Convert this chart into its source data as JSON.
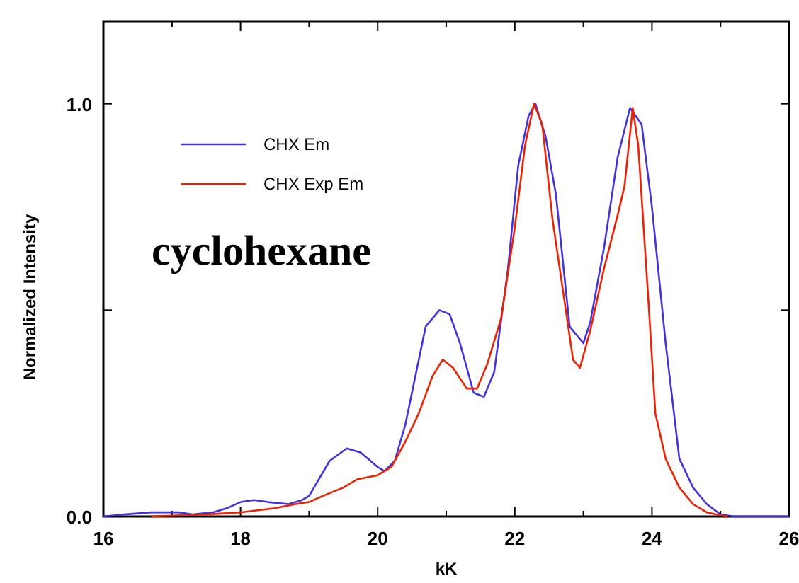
{
  "chart_data": {
    "type": "line",
    "xlabel": "kK",
    "ylabel": "Normalized Intensity",
    "annotations": [
      "cyclohexane"
    ],
    "xlim": [
      16,
      26
    ],
    "ylim": [
      0,
      1.2
    ],
    "xticks": [
      16,
      {
        "value": 17,
        "label": null
      },
      18,
      {
        "value": 19,
        "label": null
      },
      20,
      {
        "value": 21,
        "label": null
      },
      22,
      {
        "value": 23,
        "label": null
      },
      24,
      {
        "value": 25,
        "label": null
      },
      26
    ],
    "yticks": [
      {
        "value": 0,
        "label": "0.0"
      },
      {
        "value": 0.5,
        "label": null
      },
      {
        "value": 1,
        "label": "1.0"
      }
    ],
    "grid": false,
    "legend": "top left",
    "marker": "none",
    "line_style": "solid",
    "series": [
      {
        "name": "CHX Em",
        "color": "#4433dd",
        "x": [
          16,
          16.3,
          16.7,
          17.1,
          17.3,
          17.6,
          17.8,
          18,
          18.2,
          18.4,
          18.7,
          18.9,
          19,
          19.3,
          19.55,
          19.75,
          20,
          20.1,
          20.25,
          20.4,
          20.7,
          20.9,
          21.05,
          21.2,
          21.4,
          21.55,
          21.7,
          21.9,
          22.05,
          22.2,
          22.3,
          22.45,
          22.6,
          22.8,
          23,
          23.1,
          23.3,
          23.5,
          23.68,
          23.85,
          24,
          24.2,
          24.4,
          24.6,
          24.8,
          25,
          25.2,
          26
        ],
        "values": [
          0,
          0.005,
          0.01,
          0.01,
          0.005,
          0.01,
          0.02,
          0.035,
          0.04,
          0.035,
          0.03,
          0.04,
          0.05,
          0.135,
          0.165,
          0.155,
          0.12,
          0.11,
          0.135,
          0.22,
          0.46,
          0.5,
          0.49,
          0.42,
          0.3,
          0.29,
          0.35,
          0.6,
          0.85,
          0.97,
          1,
          0.92,
          0.78,
          0.46,
          0.42,
          0.47,
          0.65,
          0.87,
          0.99,
          0.95,
          0.75,
          0.42,
          0.14,
          0.07,
          0.03,
          0.005,
          0,
          0
        ]
      },
      {
        "name": "CHX Exp Em",
        "color": "#ee2200",
        "x": [
          16.7,
          17.5,
          18,
          18.5,
          18.8,
          19,
          19.2,
          19.5,
          19.7,
          20,
          20.2,
          20.4,
          20.6,
          20.8,
          20.95,
          21.1,
          21.3,
          21.45,
          21.6,
          21.8,
          22,
          22.15,
          22.28,
          22.4,
          22.55,
          22.7,
          22.85,
          22.95,
          23.1,
          23.3,
          23.5,
          23.6,
          23.72,
          23.8,
          23.95,
          24.05,
          24.2,
          24.4,
          24.6,
          24.8,
          25,
          25.1
        ],
        "values": [
          0,
          0.005,
          0.01,
          0.02,
          0.03,
          0.035,
          0.05,
          0.07,
          0.09,
          0.1,
          0.12,
          0.18,
          0.25,
          0.34,
          0.38,
          0.36,
          0.31,
          0.31,
          0.37,
          0.48,
          0.7,
          0.9,
          1,
          0.95,
          0.72,
          0.55,
          0.38,
          0.36,
          0.45,
          0.6,
          0.73,
          0.8,
          0.99,
          0.9,
          0.52,
          0.25,
          0.14,
          0.07,
          0.03,
          0.01,
          0.003,
          0
        ]
      }
    ]
  }
}
